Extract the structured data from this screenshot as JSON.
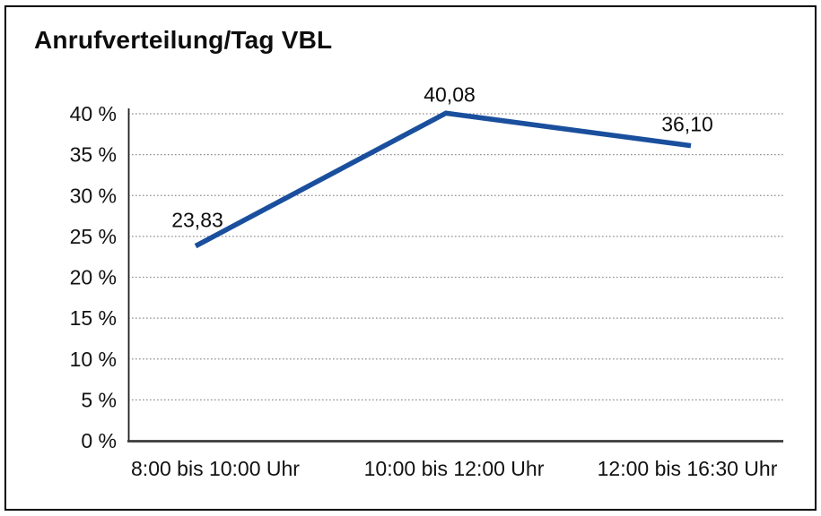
{
  "title": "Anrufverteilung/Tag VBL",
  "chart_data": {
    "type": "line",
    "title": "Anrufverteilung/Tag VBL",
    "categories": [
      "8:00 bis 10:00 Uhr",
      "10:00 bis 12:00 Uhr",
      "12:00 bis 16:30 Uhr"
    ],
    "values": [
      23.83,
      40.08,
      36.1
    ],
    "point_labels": [
      "23,83",
      "40,08",
      "36,10"
    ],
    "xlabel": "",
    "ylabel": "",
    "ylim": [
      0,
      40
    ],
    "ytick_values": [
      0,
      5,
      10,
      15,
      20,
      25,
      30,
      35,
      40
    ],
    "ytick_labels": [
      "0 %",
      "5 %",
      "10 %",
      "15 %",
      "20 %",
      "25 %",
      "30 %",
      "35 %",
      "40 %"
    ],
    "grid": "horizontal-dotted",
    "legend": "none",
    "line_color": "#1a4f9d",
    "gridline_color": "#8f8f8f",
    "axis_color": "#3a3a3a",
    "frame_border_color": "#000000",
    "background_color": "#ffffff"
  }
}
